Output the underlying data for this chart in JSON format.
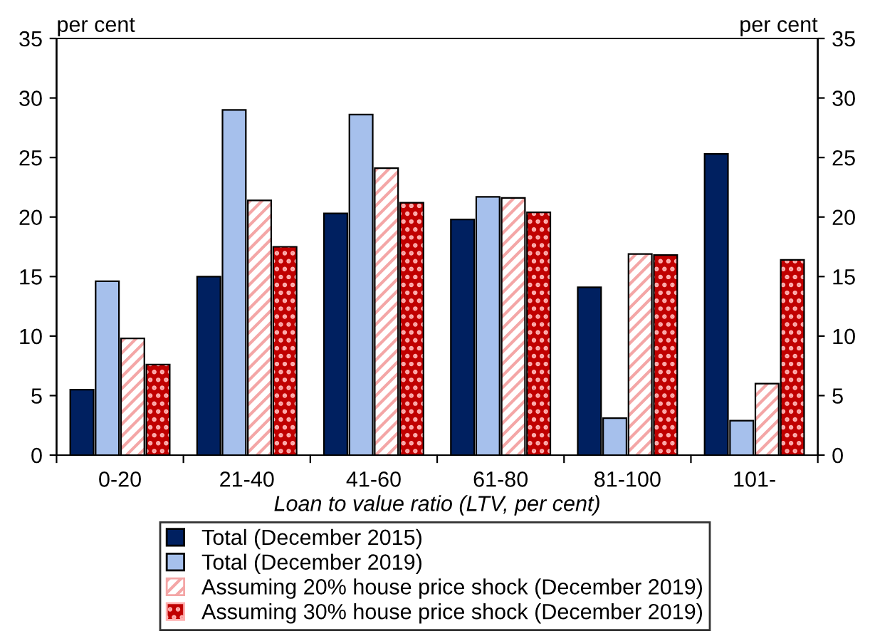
{
  "chart_data": {
    "type": "bar",
    "xlabel": "Loan to value ratio (LTV, per cent)",
    "ylabel": "per cent",
    "y2label": "per cent",
    "categories": [
      "0-20",
      "21-40",
      "41-60",
      "61-80",
      "81-100",
      "101-"
    ],
    "series": [
      {
        "name": "Total (December 2015)",
        "color": "#002060",
        "values": [
          5.5,
          15.0,
          20.3,
          19.8,
          14.1,
          25.3
        ]
      },
      {
        "name": "Total (December 2019)",
        "color": "#a6c0ec",
        "values": [
          14.6,
          29.0,
          28.6,
          21.7,
          3.1,
          2.9
        ]
      },
      {
        "name": "Assuming 20% house price shock (December 2019)",
        "color": "#f4a6a6",
        "values": [
          9.8,
          21.4,
          24.1,
          21.6,
          16.9,
          6.0
        ]
      },
      {
        "name": "Assuming 30% house price shock (December 2019)",
        "color": "#c00000",
        "values": [
          7.6,
          17.5,
          21.2,
          20.4,
          16.8,
          16.4
        ]
      }
    ],
    "ylim": [
      0,
      35
    ],
    "yticks": [
      0,
      5,
      10,
      15,
      20,
      25,
      30,
      35
    ],
    "y2lim": [
      0,
      35
    ],
    "y2ticks": [
      0,
      5,
      10,
      15,
      20,
      25,
      30,
      35
    ],
    "grid": false,
    "legend": "bottom"
  }
}
